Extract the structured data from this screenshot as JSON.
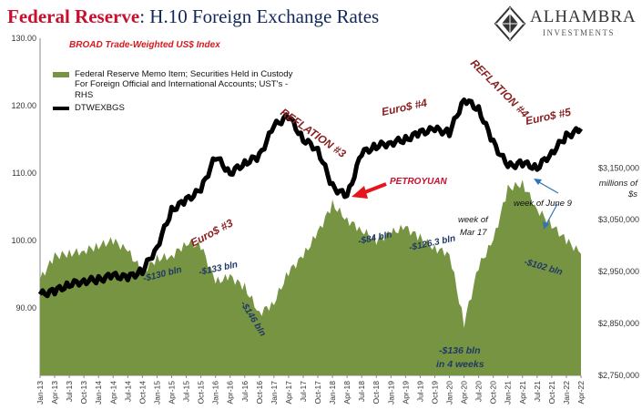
{
  "title": {
    "accent": "Federal Reserve",
    "rest": ": H.10 Foreign Exchange Rates"
  },
  "logo": {
    "name": "ALHAMBRA",
    "sub": "INVESTMENTS"
  },
  "subtitle": "BROAD Trade-Weighted US$ Index",
  "legend": {
    "area_label": "Federal Reserve Memo Item; Securities Held in Custody For Foreign Official and International Accounts; UST's - RHS",
    "line_label": "DTWEXBGS"
  },
  "right_axis_units": "millions of $s",
  "colors": {
    "area": "#779443",
    "line": "#000000",
    "red_annotation": "#8b2020",
    "blue_annotation": "#1f3864",
    "arrow_red": "#e8141b",
    "arrow_blue": "#2e75b6"
  },
  "chart_data": {
    "type": "line",
    "x_labels": [
      "Jan-13",
      "Apr-13",
      "Jul-13",
      "Oct-13",
      "Jan-14",
      "Apr-14",
      "Jul-14",
      "Oct-14",
      "Jan-15",
      "Apr-15",
      "Jul-15",
      "Oct-15",
      "Jan-16",
      "Apr-16",
      "Jul-16",
      "Oct-16",
      "Jan-17",
      "Apr-17",
      "Jul-17",
      "Oct-17",
      "Jan-18",
      "Apr-18",
      "Jul-18",
      "Oct-18",
      "Jan-19",
      "Apr-19",
      "Jul-19",
      "Oct-19",
      "Jan-20",
      "Apr-20",
      "Jul-20",
      "Oct-20",
      "Jan-21",
      "Apr-21",
      "Jul-21",
      "Oct-21",
      "Jan-22",
      "Apr-22"
    ],
    "left_axis": {
      "ticks": [
        "90.00",
        "100.00",
        "110.00",
        "120.00",
        "130.00"
      ],
      "min": 80,
      "max": 130
    },
    "right_axis": {
      "ticks": [
        "$2,750,000",
        "$2,850,000",
        "$2,950,000",
        "$3,050,000",
        "$3,150,000"
      ],
      "min": 2750000,
      "max": 3400000
    },
    "series": [
      {
        "name": "DTWEXBGS",
        "axis": "left",
        "values": [
          92.0,
          92.5,
          93.5,
          94.0,
          94.2,
          94.8,
          94.5,
          95.5,
          99.0,
          104.5,
          106.0,
          107.5,
          112.5,
          110.0,
          111.5,
          112.5,
          117.0,
          118.5,
          115.0,
          113.5,
          108.0,
          106.5,
          113.0,
          114.0,
          114.5,
          115.0,
          116.0,
          116.5,
          116.0,
          121.0,
          119.5,
          114.5,
          111.0,
          111.5,
          110.8,
          113.0,
          115.5,
          116.5
        ]
      },
      {
        "name": "Federal Reserve Memo Item; Securities Held in Custody For Foreign Official and International Accounts; UST's - RHS",
        "axis": "right",
        "values": [
          2935000,
          2980000,
          2985000,
          2990000,
          3000000,
          3010000,
          2990000,
          2950000,
          2975000,
          2980000,
          3005000,
          3000000,
          2930000,
          2940000,
          2920000,
          2870000,
          2890000,
          2950000,
          2980000,
          3025000,
          3080000,
          3050000,
          3030000,
          3010000,
          3025000,
          3035000,
          3015000,
          2995000,
          2985000,
          2850000,
          2960000,
          3010000,
          3110000,
          3120000,
          3070000,
          3040000,
          3010000,
          2985000
        ]
      }
    ],
    "annotations": [
      {
        "text": "REFLATION #3",
        "color": "red"
      },
      {
        "text": "REFLATION #4",
        "color": "red"
      },
      {
        "text": "Euro$ #3",
        "color": "red"
      },
      {
        "text": "Euro$ #4",
        "color": "red"
      },
      {
        "text": "Euro$ #5",
        "color": "red"
      },
      {
        "text": "PETROYUAN",
        "color": "red"
      },
      {
        "text": "-$130 bln",
        "color": "blue"
      },
      {
        "text": "-$133 bln",
        "color": "blue"
      },
      {
        "text": "-$146 bln",
        "color": "blue"
      },
      {
        "text": "-$84 bln",
        "color": "blue"
      },
      {
        "text": "-$126.3 bln",
        "color": "blue"
      },
      {
        "text": "-$102 bln",
        "color": "blue"
      },
      {
        "text": "-$136 bln",
        "color": "blue"
      },
      {
        "text": "in 4 weeks",
        "color": "blue"
      },
      {
        "text": "week of",
        "color": "black"
      },
      {
        "text": "Mar 17",
        "color": "black"
      },
      {
        "text": "week of June 9",
        "color": "black"
      }
    ]
  }
}
